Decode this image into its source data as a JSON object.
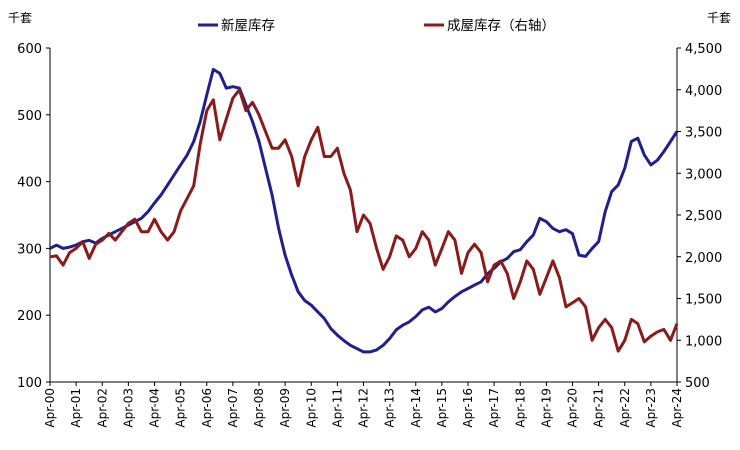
{
  "chart_data": {
    "type": "line",
    "left_unit": "千套",
    "right_unit": "千套",
    "left_ylim": [
      100,
      600
    ],
    "left_ticks": [
      "100",
      "200",
      "300",
      "400",
      "500",
      "600"
    ],
    "right_ylim": [
      500,
      4500
    ],
    "right_ticks": [
      "500",
      "1,000",
      "1,500",
      "2,000",
      "2,500",
      "3,000",
      "3,500",
      "4,000",
      "4,500"
    ],
    "x_start": 2000.25,
    "x_end": 2024.25,
    "x_ticks": [
      "Apr-00",
      "Apr-01",
      "Apr-02",
      "Apr-03",
      "Apr-04",
      "Apr-05",
      "Apr-06",
      "Apr-07",
      "Apr-08",
      "Apr-09",
      "Apr-10",
      "Apr-11",
      "Apr-12",
      "Apr-13",
      "Apr-14",
      "Apr-15",
      "Apr-16",
      "Apr-17",
      "Apr-18",
      "Apr-19",
      "Apr-20",
      "Apr-21",
      "Apr-22",
      "Apr-23",
      "Apr-24"
    ],
    "grid": false,
    "legend_position": "top",
    "series": [
      {
        "name": "新屋库存",
        "axis": "left",
        "color": "#1f1f8f",
        "points": [
          [
            2000.25,
            300
          ],
          [
            2000.5,
            305
          ],
          [
            2000.75,
            300
          ],
          [
            2001.0,
            302
          ],
          [
            2001.25,
            305
          ],
          [
            2001.5,
            310
          ],
          [
            2001.75,
            312
          ],
          [
            2002.0,
            308
          ],
          [
            2002.25,
            315
          ],
          [
            2002.5,
            320
          ],
          [
            2002.75,
            325
          ],
          [
            2003.0,
            330
          ],
          [
            2003.25,
            335
          ],
          [
            2003.5,
            340
          ],
          [
            2003.75,
            345
          ],
          [
            2004.0,
            355
          ],
          [
            2004.25,
            368
          ],
          [
            2004.5,
            380
          ],
          [
            2004.75,
            395
          ],
          [
            2005.0,
            410
          ],
          [
            2005.25,
            425
          ],
          [
            2005.5,
            440
          ],
          [
            2005.75,
            460
          ],
          [
            2006.0,
            490
          ],
          [
            2006.25,
            530
          ],
          [
            2006.5,
            568
          ],
          [
            2006.75,
            562
          ],
          [
            2007.0,
            540
          ],
          [
            2007.25,
            542
          ],
          [
            2007.5,
            540
          ],
          [
            2007.75,
            515
          ],
          [
            2008.0,
            490
          ],
          [
            2008.25,
            460
          ],
          [
            2008.5,
            420
          ],
          [
            2008.75,
            380
          ],
          [
            2009.0,
            330
          ],
          [
            2009.25,
            290
          ],
          [
            2009.5,
            260
          ],
          [
            2009.75,
            235
          ],
          [
            2010.0,
            222
          ],
          [
            2010.25,
            215
          ],
          [
            2010.5,
            205
          ],
          [
            2010.75,
            195
          ],
          [
            2011.0,
            180
          ],
          [
            2011.25,
            170
          ],
          [
            2011.5,
            162
          ],
          [
            2011.75,
            155
          ],
          [
            2012.0,
            150
          ],
          [
            2012.25,
            145
          ],
          [
            2012.5,
            145
          ],
          [
            2012.75,
            148
          ],
          [
            2013.0,
            155
          ],
          [
            2013.25,
            165
          ],
          [
            2013.5,
            178
          ],
          [
            2013.75,
            185
          ],
          [
            2014.0,
            190
          ],
          [
            2014.25,
            198
          ],
          [
            2014.5,
            208
          ],
          [
            2014.75,
            212
          ],
          [
            2015.0,
            205
          ],
          [
            2015.25,
            210
          ],
          [
            2015.5,
            220
          ],
          [
            2015.75,
            228
          ],
          [
            2016.0,
            235
          ],
          [
            2016.25,
            240
          ],
          [
            2016.5,
            245
          ],
          [
            2016.75,
            250
          ],
          [
            2017.0,
            262
          ],
          [
            2017.25,
            270
          ],
          [
            2017.5,
            280
          ],
          [
            2017.75,
            285
          ],
          [
            2018.0,
            295
          ],
          [
            2018.25,
            298
          ],
          [
            2018.5,
            310
          ],
          [
            2018.75,
            320
          ],
          [
            2019.0,
            345
          ],
          [
            2019.25,
            340
          ],
          [
            2019.5,
            330
          ],
          [
            2019.75,
            325
          ],
          [
            2020.0,
            328
          ],
          [
            2020.25,
            322
          ],
          [
            2020.5,
            290
          ],
          [
            2020.75,
            288
          ],
          [
            2021.0,
            300
          ],
          [
            2021.25,
            310
          ],
          [
            2021.5,
            355
          ],
          [
            2021.75,
            385
          ],
          [
            2022.0,
            395
          ],
          [
            2022.25,
            420
          ],
          [
            2022.5,
            460
          ],
          [
            2022.75,
            465
          ],
          [
            2023.0,
            440
          ],
          [
            2023.25,
            425
          ],
          [
            2023.5,
            432
          ],
          [
            2023.75,
            445
          ],
          [
            2024.0,
            460
          ],
          [
            2024.25,
            475
          ]
        ]
      },
      {
        "name": "成屋库存（右轴）",
        "axis": "right",
        "color": "#8b1a1a",
        "points": [
          [
            2000.25,
            2000
          ],
          [
            2000.5,
            2010
          ],
          [
            2000.75,
            1900
          ],
          [
            2001.0,
            2050
          ],
          [
            2001.25,
            2100
          ],
          [
            2001.5,
            2180
          ],
          [
            2001.75,
            1980
          ],
          [
            2002.0,
            2150
          ],
          [
            2002.25,
            2200
          ],
          [
            2002.5,
            2280
          ],
          [
            2002.75,
            2200
          ],
          [
            2003.0,
            2300
          ],
          [
            2003.25,
            2400
          ],
          [
            2003.5,
            2450
          ],
          [
            2003.75,
            2300
          ],
          [
            2004.0,
            2300
          ],
          [
            2004.25,
            2450
          ],
          [
            2004.5,
            2300
          ],
          [
            2004.75,
            2200
          ],
          [
            2005.0,
            2300
          ],
          [
            2005.25,
            2550
          ],
          [
            2005.5,
            2700
          ],
          [
            2005.75,
            2850
          ],
          [
            2006.0,
            3350
          ],
          [
            2006.25,
            3750
          ],
          [
            2006.5,
            3880
          ],
          [
            2006.75,
            3400
          ],
          [
            2007.0,
            3650
          ],
          [
            2007.25,
            3900
          ],
          [
            2007.5,
            4000
          ],
          [
            2007.75,
            3750
          ],
          [
            2008.0,
            3850
          ],
          [
            2008.25,
            3700
          ],
          [
            2008.5,
            3500
          ],
          [
            2008.75,
            3300
          ],
          [
            2009.0,
            3300
          ],
          [
            2009.25,
            3400
          ],
          [
            2009.5,
            3200
          ],
          [
            2009.75,
            2850
          ],
          [
            2010.0,
            3200
          ],
          [
            2010.25,
            3400
          ],
          [
            2010.5,
            3550
          ],
          [
            2010.75,
            3200
          ],
          [
            2011.0,
            3200
          ],
          [
            2011.25,
            3300
          ],
          [
            2011.5,
            3000
          ],
          [
            2011.75,
            2800
          ],
          [
            2012.0,
            2300
          ],
          [
            2012.25,
            2500
          ],
          [
            2012.5,
            2400
          ],
          [
            2012.75,
            2100
          ],
          [
            2013.0,
            1850
          ],
          [
            2013.25,
            2000
          ],
          [
            2013.5,
            2250
          ],
          [
            2013.75,
            2200
          ],
          [
            2014.0,
            2000
          ],
          [
            2014.25,
            2100
          ],
          [
            2014.5,
            2300
          ],
          [
            2014.75,
            2200
          ],
          [
            2015.0,
            1900
          ],
          [
            2015.25,
            2100
          ],
          [
            2015.5,
            2300
          ],
          [
            2015.75,
            2200
          ],
          [
            2016.0,
            1800
          ],
          [
            2016.25,
            2050
          ],
          [
            2016.5,
            2150
          ],
          [
            2016.75,
            2050
          ],
          [
            2017.0,
            1700
          ],
          [
            2017.25,
            1900
          ],
          [
            2017.5,
            1950
          ],
          [
            2017.75,
            1800
          ],
          [
            2018.0,
            1500
          ],
          [
            2018.25,
            1700
          ],
          [
            2018.5,
            1950
          ],
          [
            2018.75,
            1850
          ],
          [
            2019.0,
            1550
          ],
          [
            2019.25,
            1750
          ],
          [
            2019.5,
            1950
          ],
          [
            2019.75,
            1750
          ],
          [
            2020.0,
            1400
          ],
          [
            2020.25,
            1450
          ],
          [
            2020.5,
            1500
          ],
          [
            2020.75,
            1400
          ],
          [
            2021.0,
            1000
          ],
          [
            2021.25,
            1150
          ],
          [
            2021.5,
            1250
          ],
          [
            2021.75,
            1150
          ],
          [
            2022.0,
            870
          ],
          [
            2022.25,
            1000
          ],
          [
            2022.5,
            1250
          ],
          [
            2022.75,
            1200
          ],
          [
            2023.0,
            980
          ],
          [
            2023.25,
            1050
          ],
          [
            2023.5,
            1100
          ],
          [
            2023.75,
            1130
          ],
          [
            2024.0,
            1000
          ],
          [
            2024.25,
            1200
          ]
        ]
      }
    ]
  }
}
